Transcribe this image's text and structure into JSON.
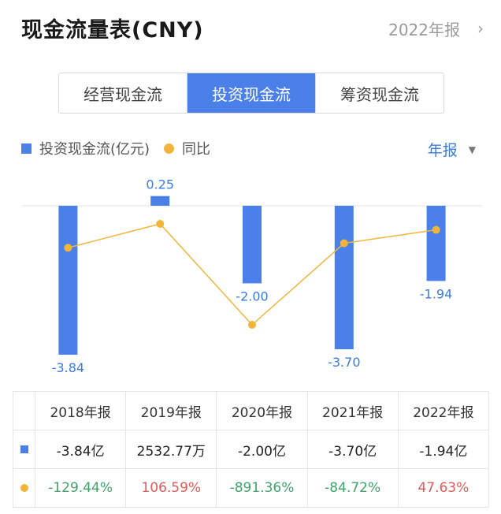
{
  "header": {
    "title": "现金流量表(CNY)",
    "period": "2022年报",
    "chevron": "›"
  },
  "tabs": [
    {
      "label": "经营现金流",
      "active": false
    },
    {
      "label": "投资现金流",
      "active": true
    },
    {
      "label": "筹资现金流",
      "active": false
    }
  ],
  "legend": {
    "bar_label": "投资现金流(亿元)",
    "line_label": "同比"
  },
  "report_type": {
    "label": "年报",
    "arrow": "▼"
  },
  "colors": {
    "bar": "#4a80e8",
    "line": "#f2b53c",
    "positive": "#e05a5a",
    "negative": "#3fa36b",
    "accent": "#3b7be0"
  },
  "chart_data": {
    "type": "bar",
    "categories": [
      "2018年报",
      "2019年报",
      "2020年报",
      "2021年报",
      "2022年报"
    ],
    "series": [
      {
        "name": "投资现金流(亿元)",
        "type": "bar",
        "values": [
          -3.84,
          0.25,
          -2.0,
          -3.7,
          -1.94
        ],
        "labels": [
          "-3.84",
          "0.25",
          "-2.00",
          "-3.70",
          "-1.94"
        ]
      },
      {
        "name": "同比",
        "type": "line",
        "values": [
          -129.44,
          106.59,
          -891.36,
          -84.72,
          47.63
        ]
      }
    ]
  },
  "table": {
    "headers": [
      "2018年报",
      "2019年报",
      "2020年报",
      "2021年报",
      "2022年报"
    ],
    "bar_row": [
      "-3.84亿",
      "2532.77万",
      "-2.00亿",
      "-3.70亿",
      "-1.94亿"
    ],
    "line_row": [
      "-129.44%",
      "106.59%",
      "-891.36%",
      "-84.72%",
      "47.63%"
    ]
  }
}
